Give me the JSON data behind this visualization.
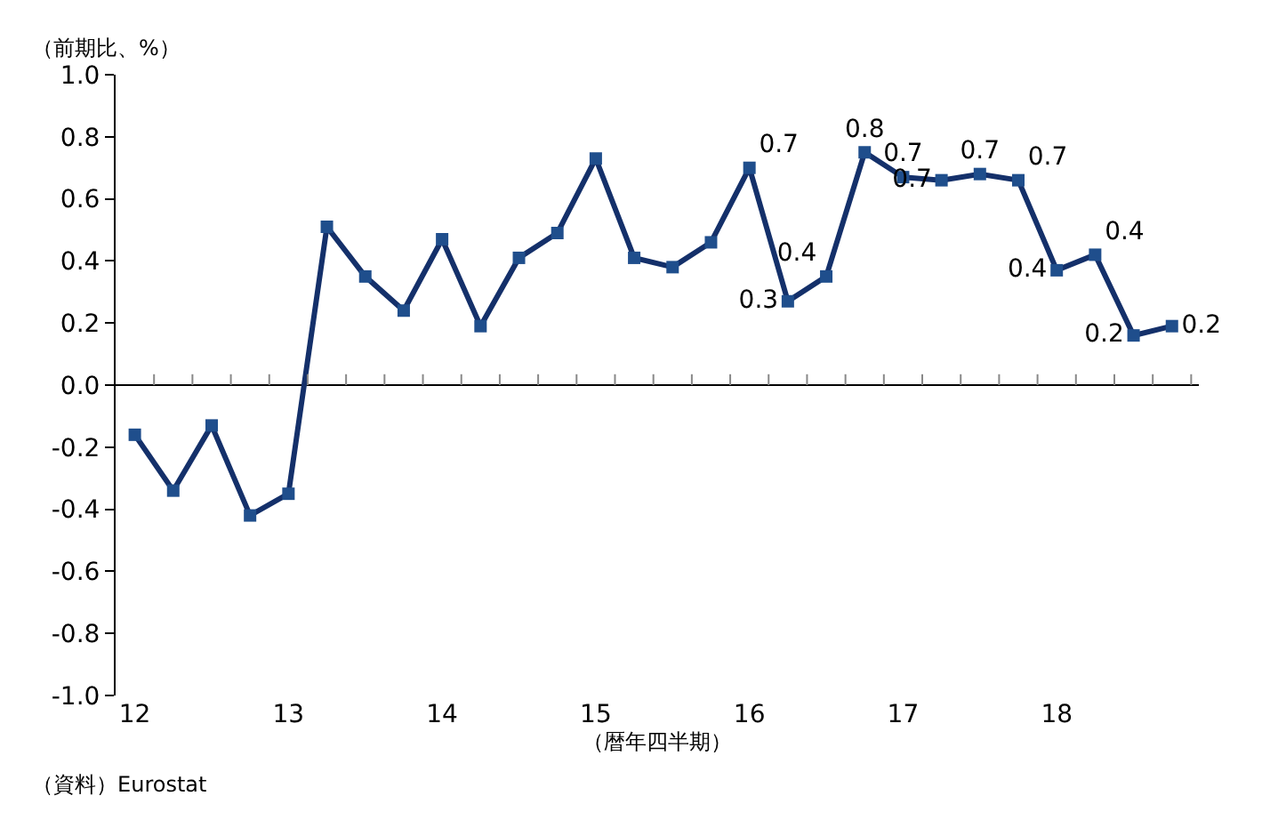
{
  "chart_data": {
    "type": "line",
    "ylabel": "（前期比、%）",
    "xlabel": "（暦年四半期）",
    "annotations": [
      "（資料）Eurostat"
    ],
    "categories": [
      "12",
      null,
      null,
      null,
      "13",
      null,
      null,
      null,
      "14",
      null,
      null,
      null,
      "15",
      null,
      null,
      null,
      "16",
      null,
      null,
      null,
      "17",
      null,
      null,
      null,
      "18",
      null,
      null,
      null
    ],
    "series": [
      {
        "color": "#14306a",
        "values": [
          -0.16,
          -0.34,
          -0.13,
          -0.42,
          -0.35,
          0.51,
          0.35,
          0.24,
          0.47,
          0.19,
          0.41,
          0.49,
          0.73,
          0.41,
          0.38,
          0.46,
          0.7,
          0.27,
          0.35,
          0.75,
          0.67,
          0.66,
          0.68,
          0.66,
          0.37,
          0.42,
          0.16,
          0.19
        ],
        "value_labels": [
          null,
          null,
          null,
          null,
          null,
          null,
          null,
          null,
          null,
          null,
          null,
          null,
          null,
          null,
          null,
          null,
          "0.7",
          "0.3",
          "0.4",
          "0.8",
          "0.7",
          "0.7",
          "0.7",
          "0.7",
          "0.4",
          "0.4",
          "0.2",
          "0.2"
        ]
      }
    ],
    "ylim": [
      -1.0,
      1.0
    ],
    "yticks": [
      {
        "value": -1.0,
        "label": "-1.0"
      },
      {
        "value": -0.8,
        "label": "-0.8"
      },
      {
        "value": -0.6,
        "label": "-0.6"
      },
      {
        "value": -0.4,
        "label": "-0.4"
      },
      {
        "value": -0.2,
        "label": "-0.2"
      },
      {
        "value": 0.0,
        "label": "0.0"
      },
      {
        "value": 0.2,
        "label": "0.2"
      },
      {
        "value": 0.4,
        "label": "0.4"
      },
      {
        "value": 0.6,
        "label": "0.6"
      },
      {
        "value": 0.8,
        "label": "0.8"
      },
      {
        "value": 1.0,
        "label": "1.0"
      }
    ],
    "marker": "square",
    "line_style": "solid",
    "legend": false
  }
}
